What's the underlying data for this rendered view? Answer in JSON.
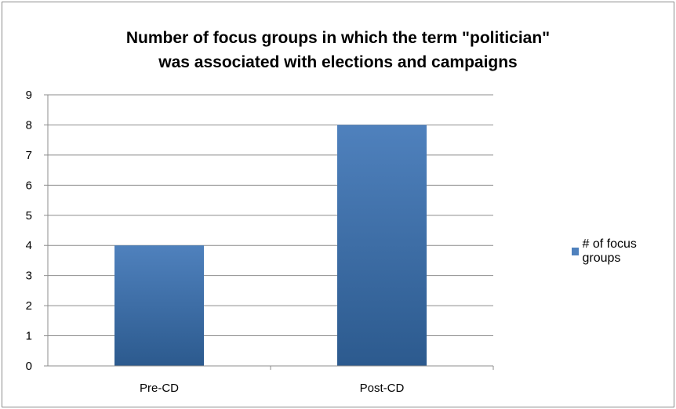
{
  "chart_data": {
    "type": "bar",
    "title": "Number of focus groups in which the term \"politician\"",
    "subtitle": "was associated with elections and campaigns",
    "categories": [
      "Pre-CD",
      "Post-CD"
    ],
    "series": [
      {
        "name": "# of focus groups",
        "values": [
          4,
          8
        ]
      }
    ],
    "ylim": [
      0,
      9
    ],
    "yticks": [
      "0",
      "1",
      "2",
      "3",
      "4",
      "5",
      "6",
      "7",
      "8",
      "9"
    ],
    "grid": true,
    "legend_position": "right",
    "colors": {
      "bar_top": "#4f81bd",
      "bar_bottom": "#2c5a8e",
      "grid": "#8c8c8c",
      "axis": "#8c8c8c"
    }
  }
}
